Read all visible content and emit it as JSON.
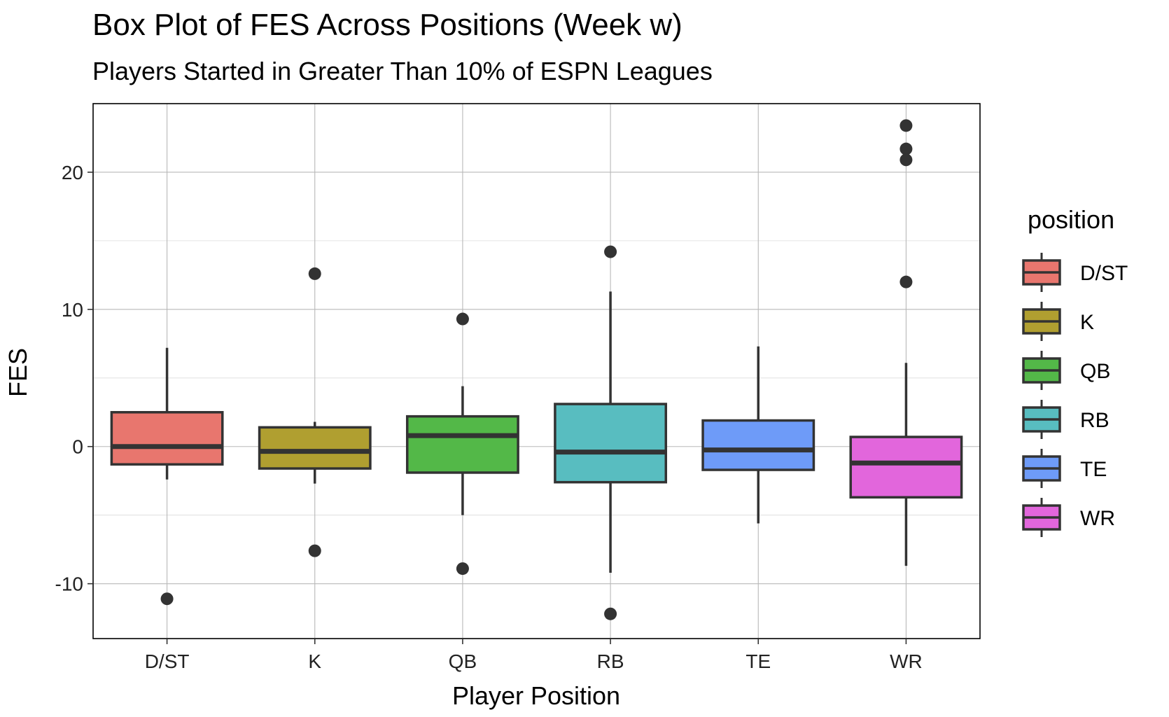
{
  "chart_data": {
    "type": "boxplot",
    "title": "Box Plot of FES Across Positions (Week w)",
    "subtitle": "Players Started in Greater Than 10% of ESPN Leagues",
    "xlabel": "Player Position",
    "ylabel": "FES",
    "ylim": [
      -14,
      25
    ],
    "yticks": [
      -10,
      0,
      10,
      20
    ],
    "ytick_labels": [
      "-10",
      "0",
      "10",
      "20"
    ],
    "grid": true,
    "legend": {
      "title": "position",
      "placement": "right"
    },
    "categories": [
      "D/ST",
      "K",
      "QB",
      "RB",
      "TE",
      "WR"
    ],
    "boxes": [
      {
        "name": "D/ST",
        "color": "#E8766E",
        "q1": -1.3,
        "median": 0.0,
        "q3": 2.5,
        "whisker_low": -2.4,
        "whisker_high": 7.2,
        "outliers": [
          -11.1
        ]
      },
      {
        "name": "K",
        "color": "#B09F30",
        "q1": -1.6,
        "median": -0.35,
        "q3": 1.4,
        "whisker_low": -2.7,
        "whisker_high": 1.8,
        "outliers": [
          12.6,
          -7.6
        ]
      },
      {
        "name": "QB",
        "color": "#53B848",
        "q1": -1.9,
        "median": 0.8,
        "q3": 2.2,
        "whisker_low": -5.0,
        "whisker_high": 4.4,
        "outliers": [
          9.3,
          -8.9
        ]
      },
      {
        "name": "RB",
        "color": "#58BDC0",
        "q1": -2.6,
        "median": -0.4,
        "q3": 3.1,
        "whisker_low": -9.2,
        "whisker_high": 11.3,
        "outliers": [
          14.2,
          -12.2
        ]
      },
      {
        "name": "TE",
        "color": "#6E9BF8",
        "q1": -1.7,
        "median": -0.25,
        "q3": 1.9,
        "whisker_low": -5.6,
        "whisker_high": 7.3,
        "outliers": []
      },
      {
        "name": "WR",
        "color": "#E266DC",
        "q1": -3.7,
        "median": -1.2,
        "q3": 0.7,
        "whisker_low": -8.7,
        "whisker_high": 6.1,
        "outliers": [
          23.4,
          21.7,
          20.9,
          12.0
        ]
      }
    ]
  }
}
